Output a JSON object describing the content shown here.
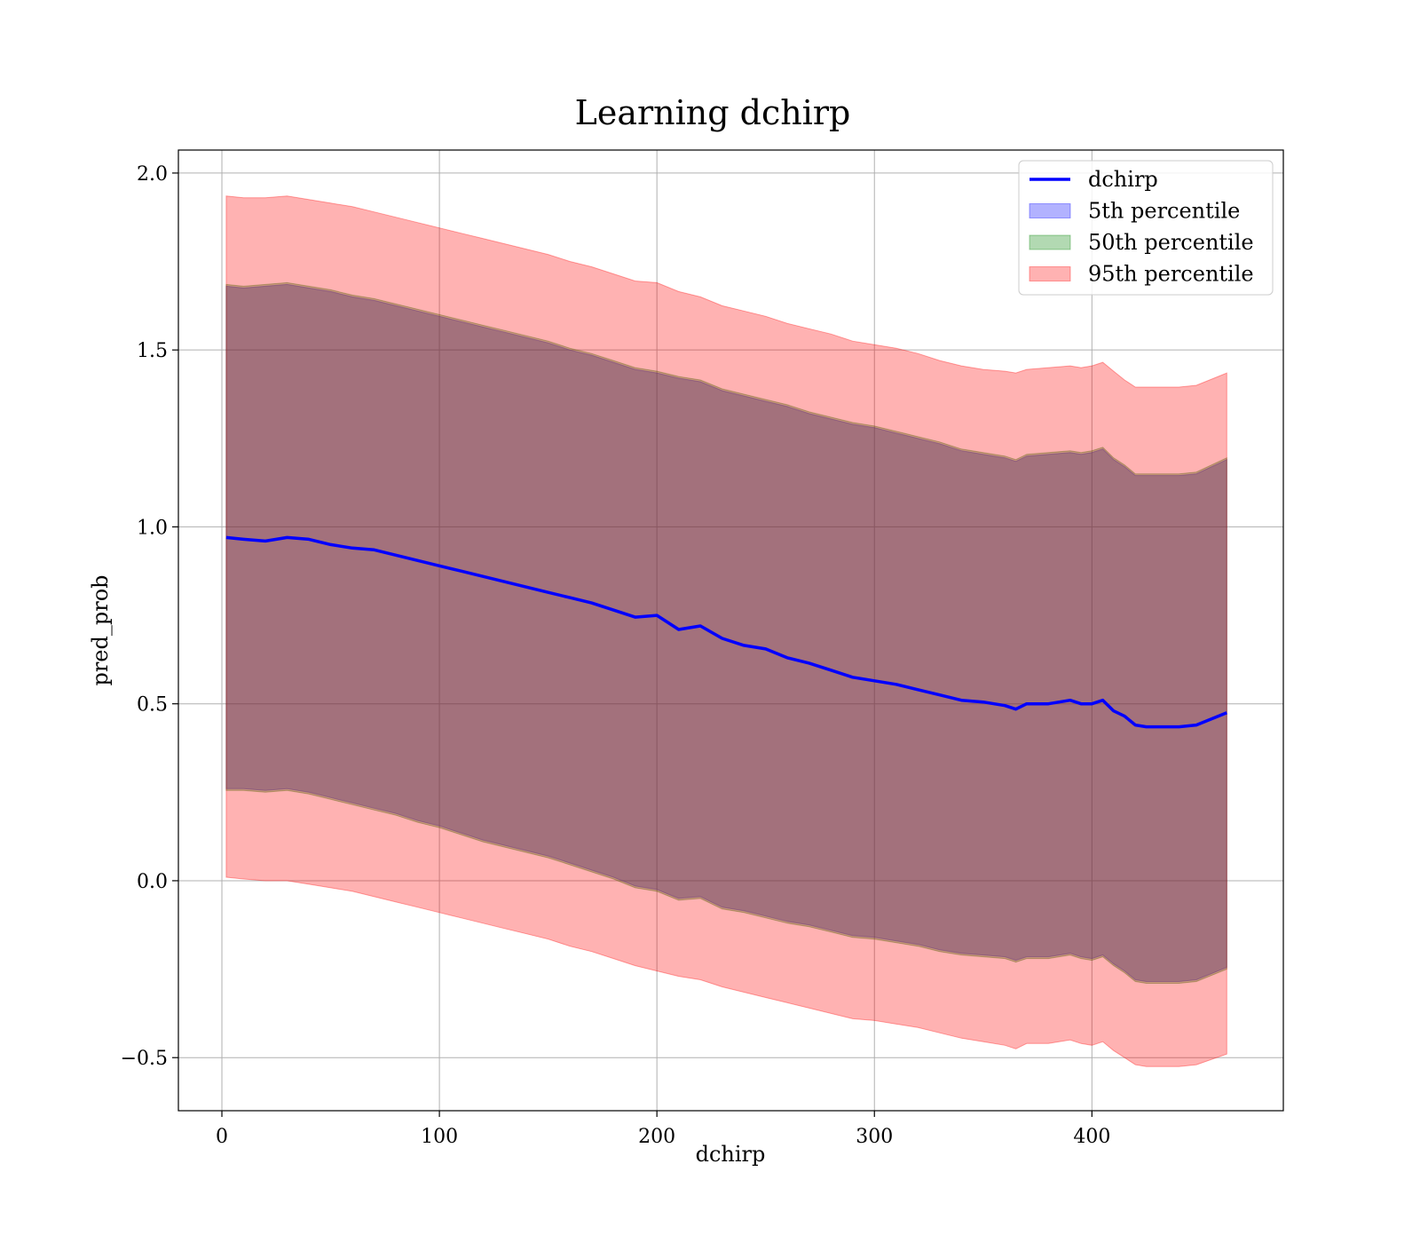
{
  "chart_data": {
    "type": "area",
    "title": "Learning dchirp",
    "xlabel": "dchirp",
    "ylabel": "pred_prob",
    "xlim": [
      -20,
      488
    ],
    "ylim": [
      -0.65,
      2.065
    ],
    "xticks": [
      0,
      100,
      200,
      300,
      400
    ],
    "xtick_labels": [
      "0",
      "100",
      "200",
      "300",
      "400"
    ],
    "yticks": [
      -0.5,
      0.0,
      0.5,
      1.0,
      1.5,
      2.0
    ],
    "ytick_labels": [
      "−0.5",
      "0.0",
      "0.5",
      "1.0",
      "1.5",
      "2.0"
    ],
    "grid": true,
    "legend_position": "top-right",
    "legend": [
      "dchirp",
      "5th percentile",
      "50th percentile",
      "95th percentile"
    ],
    "x": [
      2,
      10,
      20,
      30,
      40,
      50,
      60,
      70,
      80,
      90,
      100,
      110,
      120,
      130,
      140,
      150,
      160,
      170,
      180,
      190,
      200,
      210,
      220,
      230,
      240,
      250,
      260,
      270,
      280,
      290,
      300,
      310,
      320,
      330,
      340,
      350,
      360,
      365,
      370,
      380,
      390,
      395,
      400,
      405,
      410,
      415,
      420,
      425,
      430,
      440,
      448,
      462
    ],
    "series": [
      {
        "name": "dchirp",
        "kind": "line",
        "color": "#0000ff",
        "values": [
          0.97,
          0.965,
          0.96,
          0.97,
          0.965,
          0.95,
          0.94,
          0.935,
          0.92,
          0.905,
          0.89,
          0.875,
          0.86,
          0.845,
          0.83,
          0.815,
          0.8,
          0.785,
          0.765,
          0.745,
          0.75,
          0.71,
          0.72,
          0.685,
          0.665,
          0.655,
          0.63,
          0.615,
          0.595,
          0.575,
          0.565,
          0.555,
          0.54,
          0.525,
          0.51,
          0.505,
          0.495,
          0.485,
          0.5,
          0.5,
          0.51,
          0.5,
          0.5,
          0.51,
          0.48,
          0.465,
          0.44,
          0.435,
          0.435,
          0.435,
          0.44,
          0.475
        ]
      },
      {
        "name": "5th percentile",
        "kind": "band",
        "color": "#0000ff",
        "opacity": 0.3,
        "values_low": [
          0.26,
          0.26,
          0.255,
          0.26,
          0.25,
          0.235,
          0.22,
          0.205,
          0.19,
          0.17,
          0.155,
          0.135,
          0.115,
          0.1,
          0.085,
          0.07,
          0.05,
          0.03,
          0.01,
          -0.015,
          -0.025,
          -0.05,
          -0.045,
          -0.075,
          -0.085,
          -0.1,
          -0.115,
          -0.125,
          -0.14,
          -0.155,
          -0.16,
          -0.17,
          -0.18,
          -0.195,
          -0.205,
          -0.21,
          -0.215,
          -0.225,
          -0.215,
          -0.215,
          -0.205,
          -0.215,
          -0.22,
          -0.21,
          -0.235,
          -0.255,
          -0.28,
          -0.285,
          -0.285,
          -0.285,
          -0.28,
          -0.245
        ],
        "values_high": [
          1.68,
          1.675,
          1.68,
          1.685,
          1.675,
          1.665,
          1.65,
          1.64,
          1.625,
          1.61,
          1.595,
          1.58,
          1.565,
          1.55,
          1.535,
          1.52,
          1.5,
          1.485,
          1.465,
          1.445,
          1.435,
          1.42,
          1.41,
          1.385,
          1.37,
          1.355,
          1.34,
          1.32,
          1.305,
          1.29,
          1.28,
          1.265,
          1.25,
          1.235,
          1.215,
          1.205,
          1.195,
          1.185,
          1.2,
          1.205,
          1.21,
          1.205,
          1.21,
          1.22,
          1.19,
          1.17,
          1.145,
          1.145,
          1.145,
          1.145,
          1.15,
          1.19
        ]
      },
      {
        "name": "50th percentile",
        "kind": "band",
        "color": "#008000",
        "opacity": 0.3,
        "values_low": [
          0.255,
          0.255,
          0.25,
          0.255,
          0.245,
          0.23,
          0.215,
          0.2,
          0.185,
          0.165,
          0.15,
          0.13,
          0.11,
          0.095,
          0.08,
          0.065,
          0.045,
          0.025,
          0.005,
          -0.02,
          -0.03,
          -0.055,
          -0.05,
          -0.08,
          -0.09,
          -0.105,
          -0.12,
          -0.13,
          -0.145,
          -0.16,
          -0.165,
          -0.175,
          -0.185,
          -0.2,
          -0.21,
          -0.215,
          -0.22,
          -0.23,
          -0.22,
          -0.22,
          -0.21,
          -0.22,
          -0.225,
          -0.215,
          -0.24,
          -0.26,
          -0.285,
          -0.29,
          -0.29,
          -0.29,
          -0.285,
          -0.25
        ],
        "values_high": [
          1.685,
          1.68,
          1.685,
          1.69,
          1.68,
          1.67,
          1.655,
          1.645,
          1.63,
          1.615,
          1.6,
          1.585,
          1.57,
          1.555,
          1.54,
          1.525,
          1.505,
          1.49,
          1.47,
          1.45,
          1.44,
          1.425,
          1.415,
          1.39,
          1.375,
          1.36,
          1.345,
          1.325,
          1.31,
          1.295,
          1.285,
          1.27,
          1.255,
          1.24,
          1.22,
          1.21,
          1.2,
          1.19,
          1.205,
          1.21,
          1.215,
          1.21,
          1.215,
          1.225,
          1.195,
          1.175,
          1.15,
          1.15,
          1.15,
          1.15,
          1.155,
          1.195
        ]
      },
      {
        "name": "95th percentile",
        "kind": "band",
        "color": "#ff0000",
        "opacity": 0.3,
        "values_low": [
          0.01,
          0.005,
          0.0,
          0.0,
          -0.01,
          -0.02,
          -0.03,
          -0.045,
          -0.06,
          -0.075,
          -0.09,
          -0.105,
          -0.12,
          -0.135,
          -0.15,
          -0.165,
          -0.185,
          -0.2,
          -0.22,
          -0.24,
          -0.255,
          -0.27,
          -0.28,
          -0.3,
          -0.315,
          -0.33,
          -0.345,
          -0.36,
          -0.375,
          -0.39,
          -0.395,
          -0.405,
          -0.415,
          -0.43,
          -0.445,
          -0.455,
          -0.465,
          -0.475,
          -0.46,
          -0.46,
          -0.45,
          -0.46,
          -0.465,
          -0.455,
          -0.48,
          -0.5,
          -0.52,
          -0.525,
          -0.525,
          -0.525,
          -0.52,
          -0.49
        ],
        "values_high": [
          1.935,
          1.93,
          1.93,
          1.935,
          1.925,
          1.915,
          1.905,
          1.89,
          1.875,
          1.86,
          1.845,
          1.83,
          1.815,
          1.8,
          1.785,
          1.77,
          1.75,
          1.735,
          1.715,
          1.695,
          1.69,
          1.665,
          1.65,
          1.625,
          1.61,
          1.595,
          1.575,
          1.56,
          1.545,
          1.525,
          1.515,
          1.505,
          1.49,
          1.47,
          1.455,
          1.445,
          1.44,
          1.435,
          1.445,
          1.45,
          1.455,
          1.45,
          1.455,
          1.465,
          1.44,
          1.415,
          1.395,
          1.395,
          1.395,
          1.395,
          1.4,
          1.435
        ]
      }
    ]
  }
}
